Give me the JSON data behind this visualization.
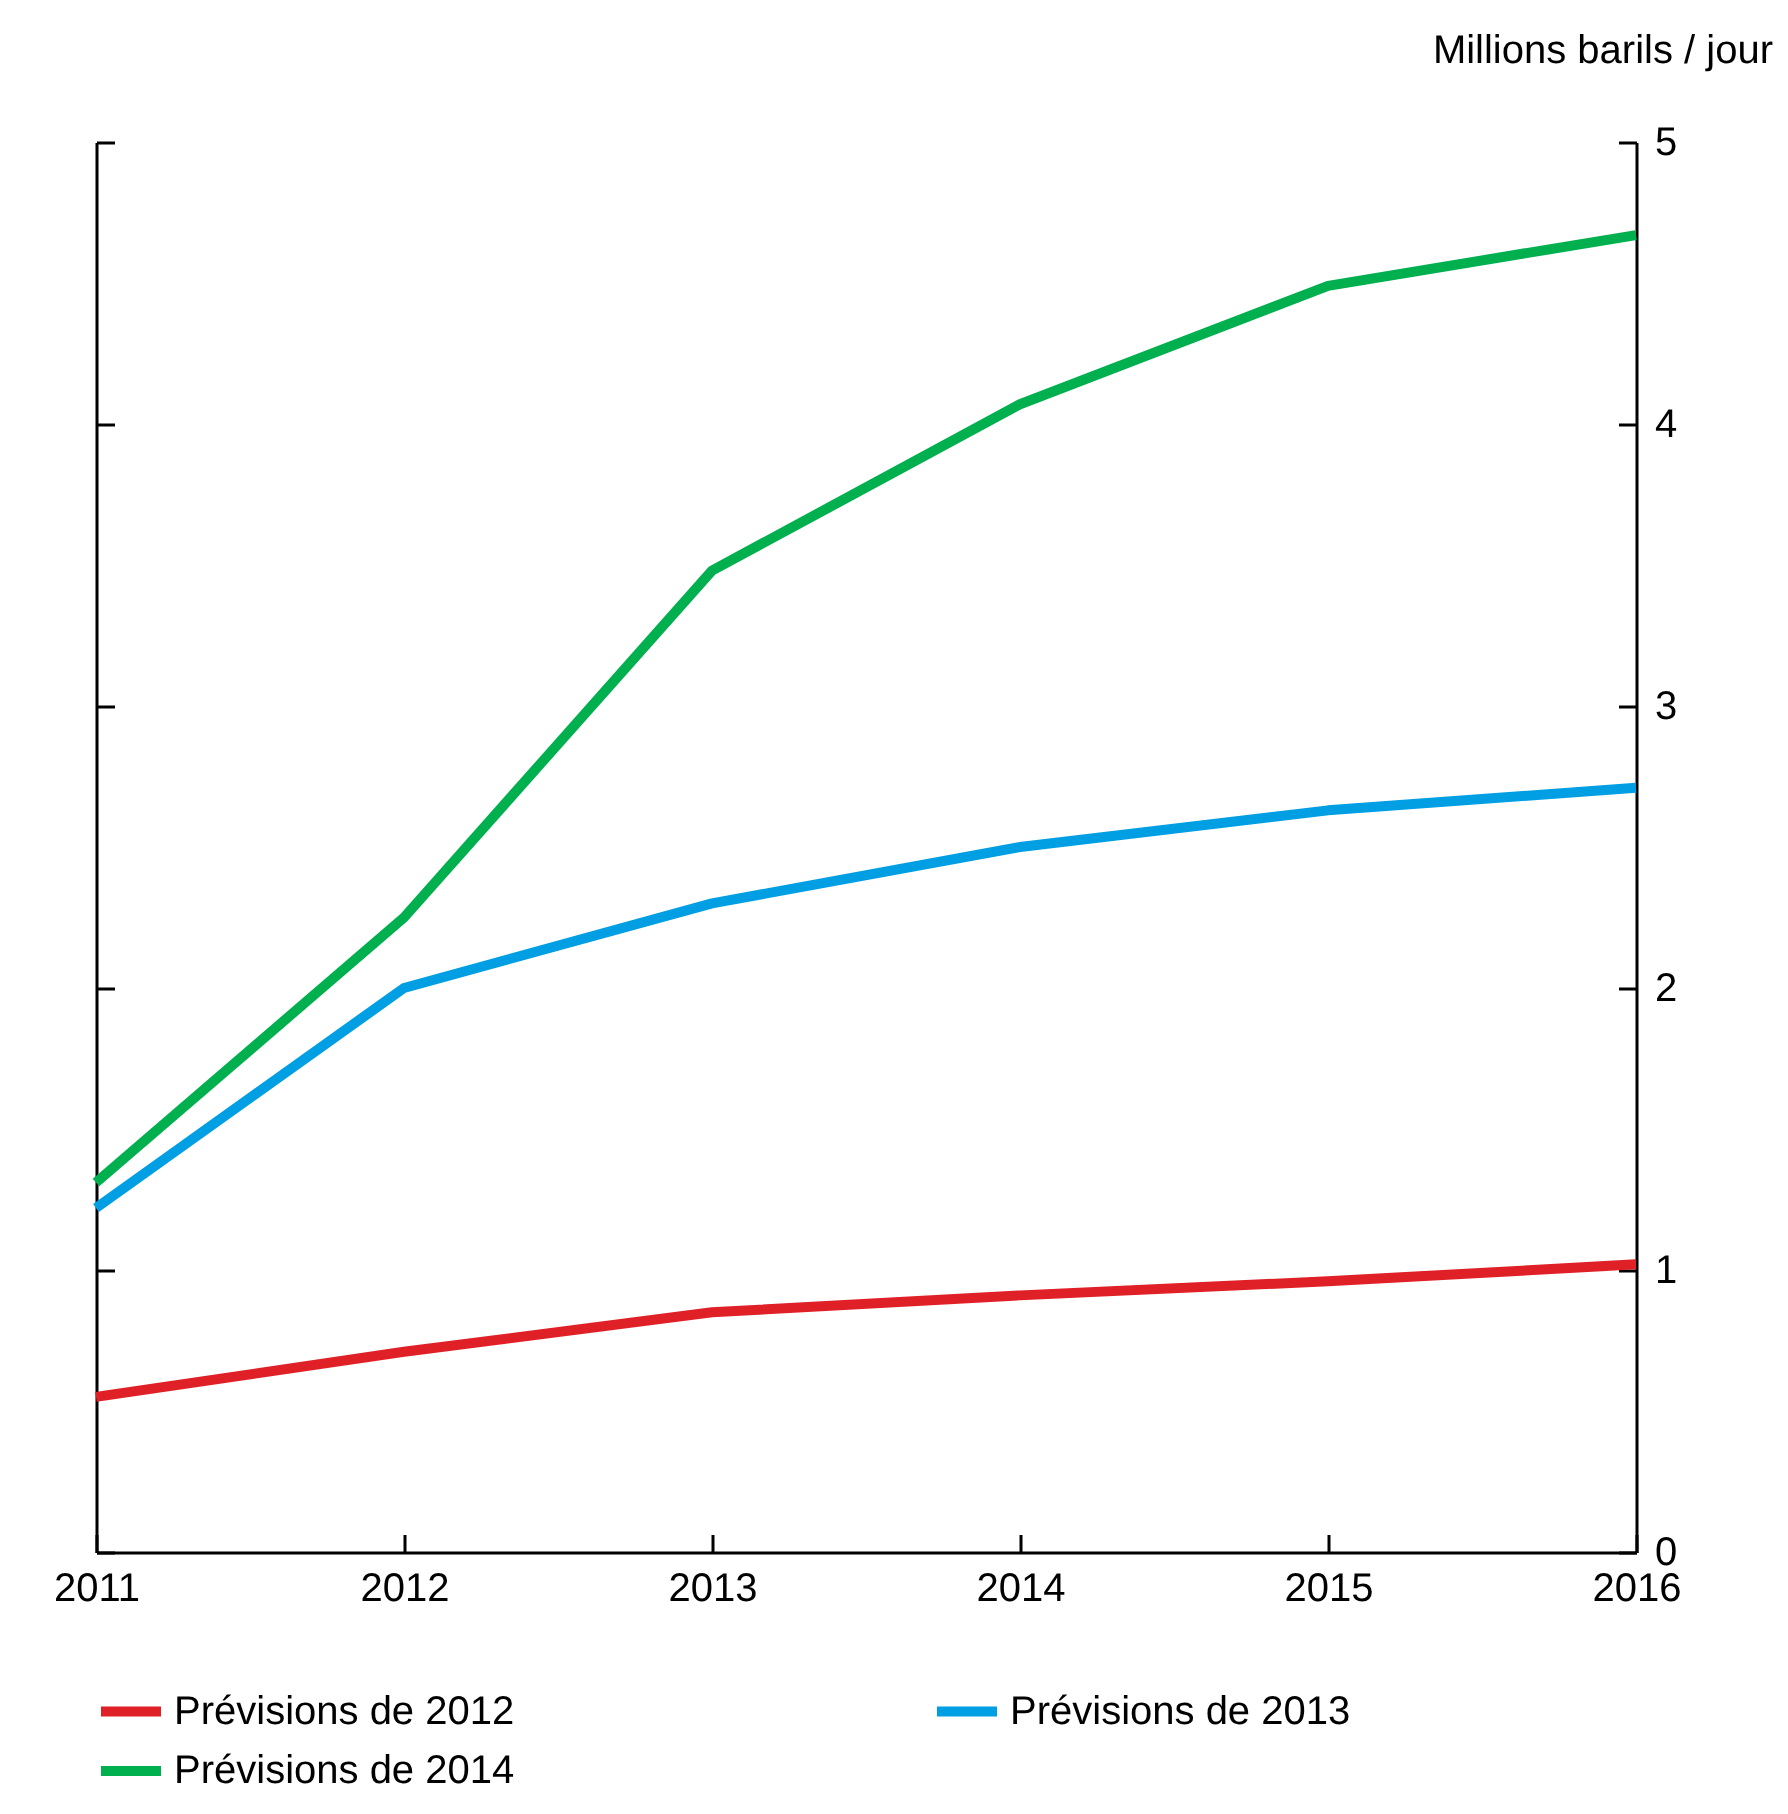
{
  "chart_data": {
    "type": "line",
    "ylabel": "Millions barils / jour",
    "x": [
      2011,
      2012,
      2013,
      2014,
      2015,
      2016
    ],
    "series": [
      {
        "name": "Prévisions de 2012",
        "color": "#e02027",
        "values": [
          0.55,
          0.71,
          0.85,
          0.91,
          0.96,
          1.02
        ]
      },
      {
        "name": "Prévisions de 2013",
        "color": "#009fe3",
        "values": [
          1.22,
          2.0,
          2.3,
          2.5,
          2.63,
          2.71
        ]
      },
      {
        "name": "Prévisions de 2014",
        "color": "#00b04f",
        "values": [
          1.31,
          2.25,
          3.48,
          4.07,
          4.49,
          4.67
        ]
      }
    ],
    "xlim": [
      2011,
      2016
    ],
    "xticks": [
      2011,
      2012,
      2013,
      2014,
      2015,
      2016
    ],
    "ylim": [
      0,
      5
    ],
    "yticks": [
      0,
      1,
      2,
      3,
      4,
      5
    ],
    "grid": false,
    "legend": "bottom"
  }
}
